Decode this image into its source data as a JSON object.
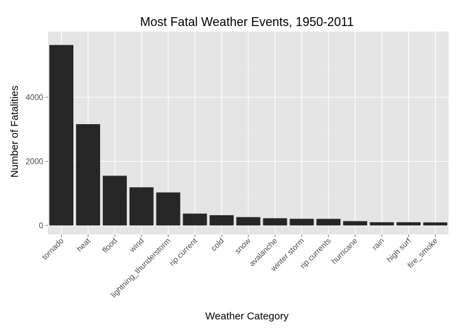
{
  "chart_data": {
    "type": "bar",
    "title": "Most Fatal Weather Events, 1950-2011",
    "xlabel": "Weather Category",
    "ylabel": "Number of Fatalities",
    "categories": [
      "tornado",
      "heat",
      "flood",
      "wind",
      "lightning_thunderstorm",
      "rip current",
      "cold",
      "snow",
      "avalanche",
      "winter storm",
      "rip currents",
      "hurricane",
      "rain",
      "high surf",
      "fire_smoke"
    ],
    "values": [
      5630,
      3160,
      1550,
      1190,
      1030,
      370,
      320,
      260,
      225,
      207,
      205,
      135,
      100,
      100,
      95
    ],
    "yticks": [
      0,
      2000,
      4000
    ],
    "ytick_labels": [
      "0",
      "2000",
      "4000"
    ],
    "ylim": [
      -280,
      6050
    ],
    "grid": true,
    "legend": "none",
    "colors": {
      "bar": "#262626",
      "panel": "#e5e5e5",
      "grid_major": "#ffffff",
      "grid_minor": "#ededed",
      "tick_label": "#4d4d4d"
    }
  }
}
